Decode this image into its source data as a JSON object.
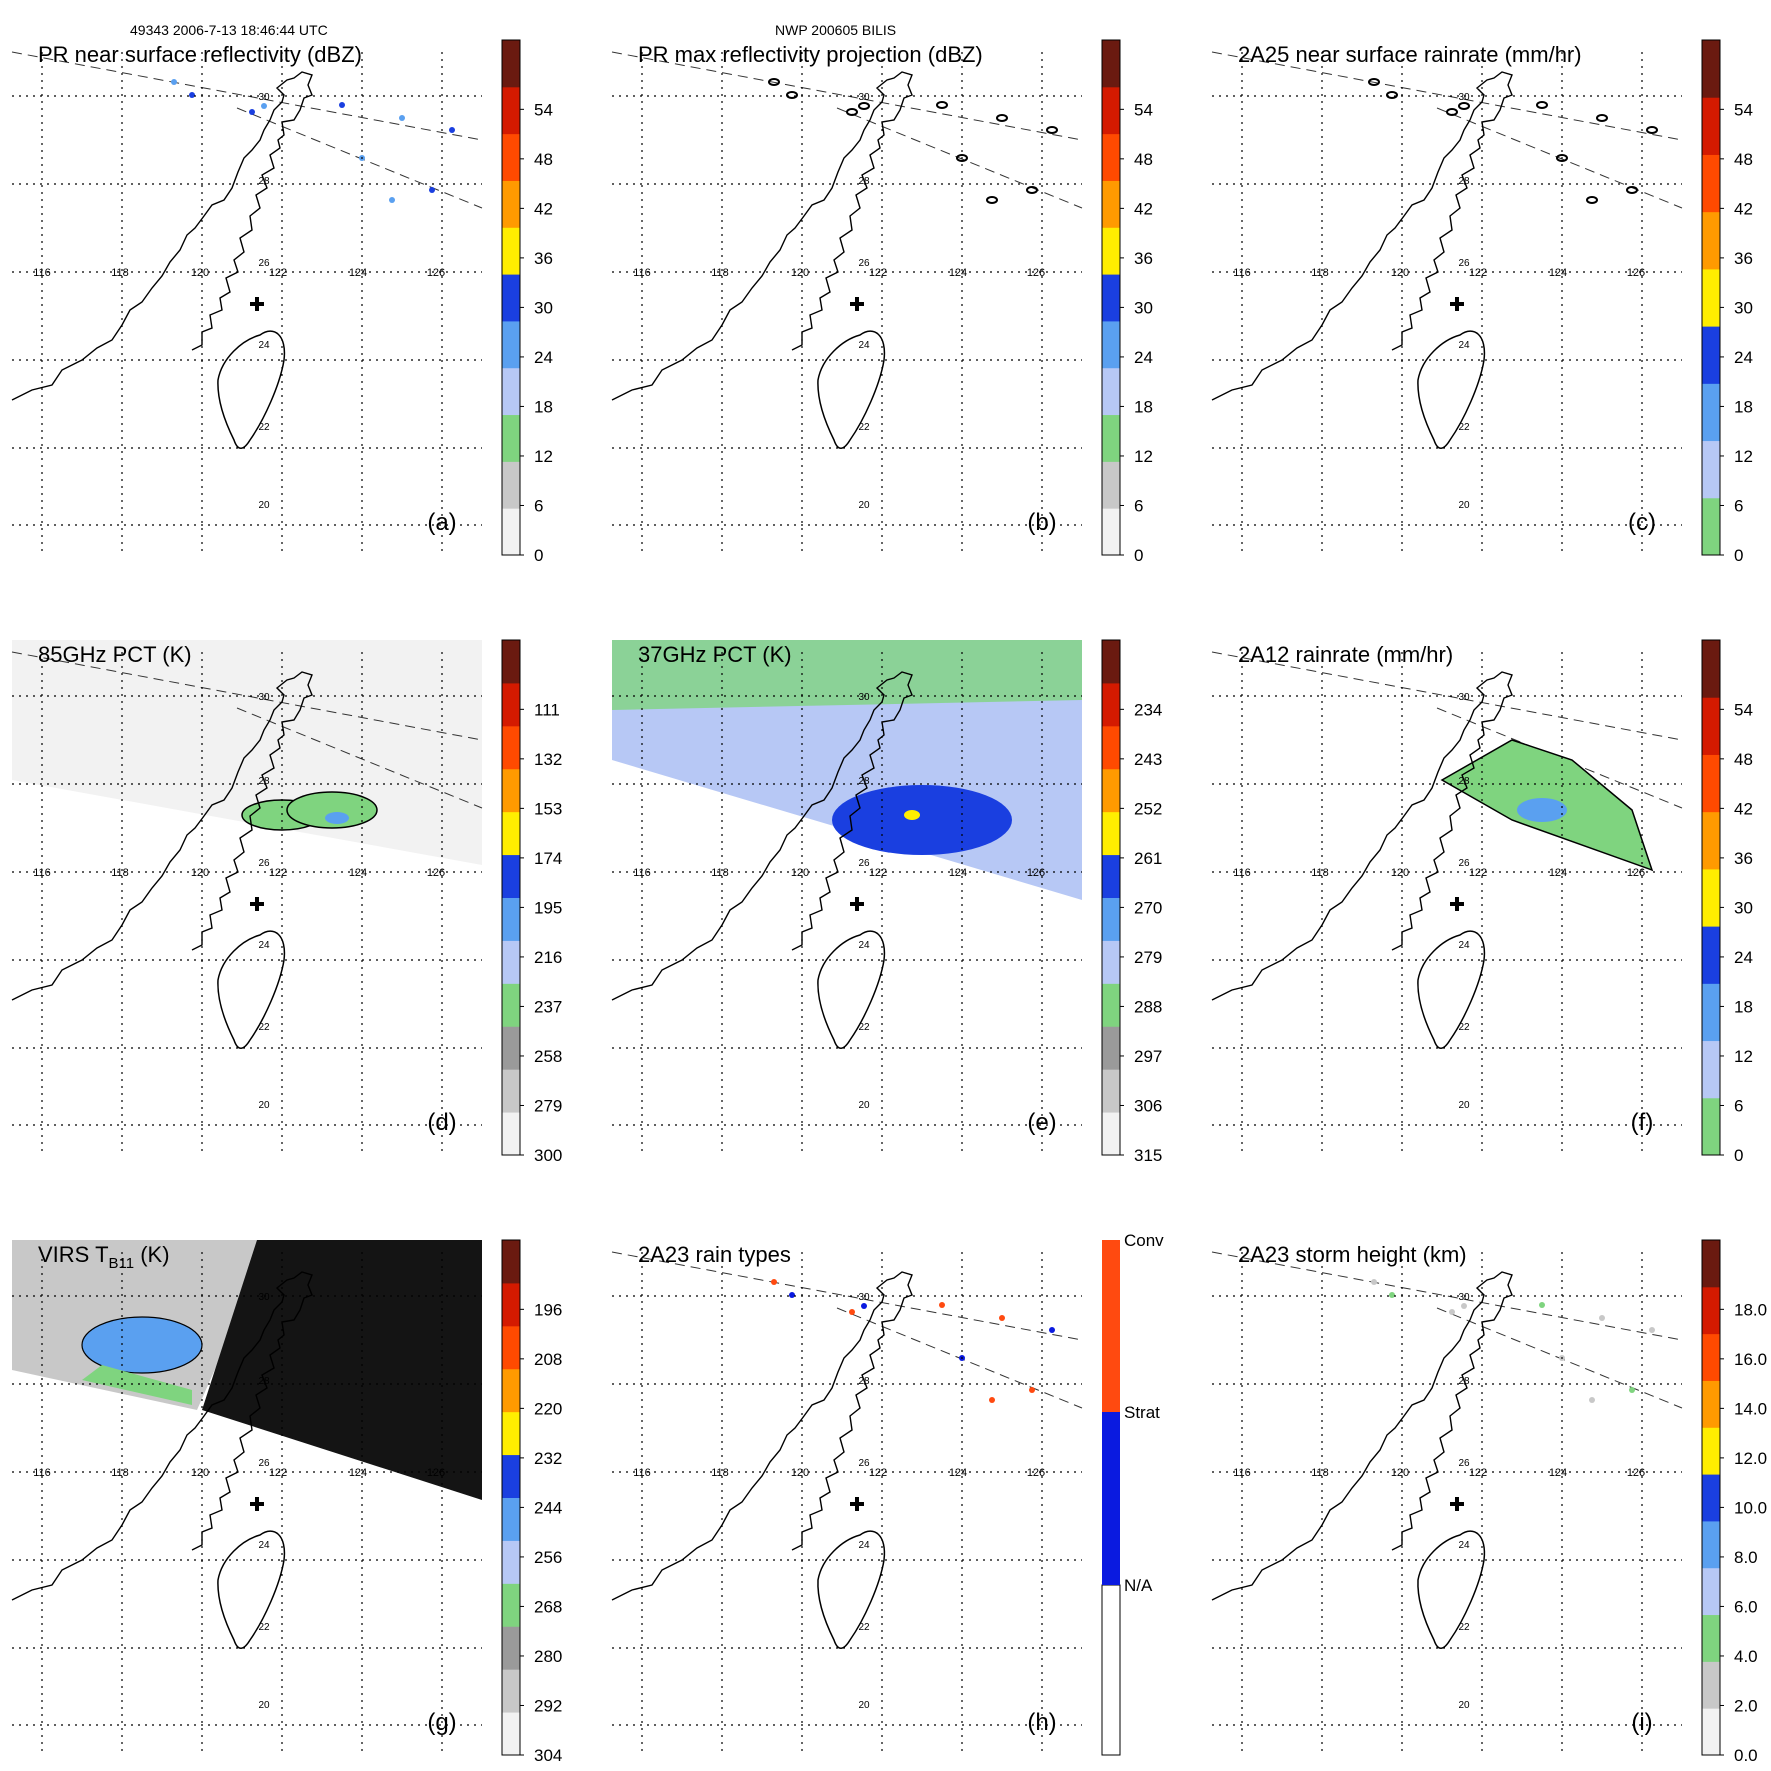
{
  "header": {
    "left": "49343 2006-7-13 18:46:44 UTC",
    "center": "NWP 200605 BILIS"
  },
  "map": {
    "lon_labels": [
      "116",
      "118",
      "120",
      "122",
      "124",
      "126"
    ],
    "lat_labels": [
      "20",
      "22",
      "24",
      "26",
      "28",
      "30"
    ]
  },
  "panels": [
    {
      "id": "a",
      "title": "PR near surface reflectivity (dBZ)",
      "letter": "(a)",
      "scale_type": "refl",
      "ticks": [
        "0",
        "6",
        "12",
        "18",
        "24",
        "30",
        "36",
        "42",
        "48",
        "54"
      ],
      "field": "pr_surface"
    },
    {
      "id": "b",
      "title": "PR max reflectivity projection (dBZ)",
      "letter": "(b)",
      "scale_type": "refl",
      "ticks": [
        "0",
        "6",
        "12",
        "18",
        "24",
        "30",
        "36",
        "42",
        "48",
        "54"
      ],
      "field": "pr_max"
    },
    {
      "id": "c",
      "title": "2A25 near surface rainrate (mm/hr)",
      "letter": "(c)",
      "scale_type": "rain",
      "ticks": [
        "0",
        "6",
        "12",
        "18",
        "24",
        "30",
        "36",
        "42",
        "48",
        "54"
      ],
      "field": "rain_2a25"
    },
    {
      "id": "d",
      "title": "85GHz PCT (K)",
      "letter": "(d)",
      "scale_type": "temp",
      "ticks": [
        "300",
        "279",
        "258",
        "237",
        "216",
        "195",
        "174",
        "153",
        "132",
        "111"
      ],
      "field": "pct85"
    },
    {
      "id": "e",
      "title": "37GHz PCT (K)",
      "letter": "(e)",
      "scale_type": "temp",
      "ticks": [
        "315",
        "306",
        "297",
        "288",
        "279",
        "270",
        "261",
        "252",
        "243",
        "234"
      ],
      "field": "pct37"
    },
    {
      "id": "f",
      "title": "2A12 rainrate (mm/hr)",
      "letter": "(f)",
      "scale_type": "rain",
      "ticks": [
        "0",
        "6",
        "12",
        "18",
        "24",
        "30",
        "36",
        "42",
        "48",
        "54"
      ],
      "field": "rain_2a12"
    },
    {
      "id": "g",
      "title": "VIRS T",
      "title_sub": "B11",
      "title_tail": " (K)",
      "letter": "(g)",
      "scale_type": "temp",
      "ticks": [
        "304",
        "292",
        "280",
        "268",
        "256",
        "244",
        "232",
        "220",
        "208",
        "196"
      ],
      "field": "virs"
    },
    {
      "id": "h",
      "title": "2A23 rain types",
      "letter": "(h)",
      "scale_type": "types",
      "ticks": [
        "N/A",
        "Strat",
        "Conv"
      ],
      "field": "raintype"
    },
    {
      "id": "i",
      "title": "2A23 storm height (km)",
      "letter": "(i)",
      "scale_type": "height",
      "ticks": [
        "0.0",
        "2.0",
        "4.0",
        "6.0",
        "8.0",
        "10.0",
        "12.0",
        "14.0",
        "16.0",
        "18.0"
      ],
      "field": "height"
    }
  ],
  "colors": {
    "coast": "#000000",
    "grid": "#000000",
    "swath": "#333333",
    "gray_light": "#f2f2f2",
    "gray_mid": "#c8c8c8",
    "gray_dark": "#9a9a9a",
    "green": "#7fd47f",
    "blue_light": "#b7c8f5",
    "blue_mid": "#5aa0f0",
    "blue": "#1a3fe0",
    "blue_dark": "#0a1ab0",
    "yellow": "#ffee00",
    "orange": "#ff9a00",
    "red_orange": "#ff4a00",
    "red": "#d41a00",
    "dark_red": "#6a1a10",
    "black": "#141414",
    "conv": "#ff4a10",
    "strat": "#0a1ae0"
  }
}
